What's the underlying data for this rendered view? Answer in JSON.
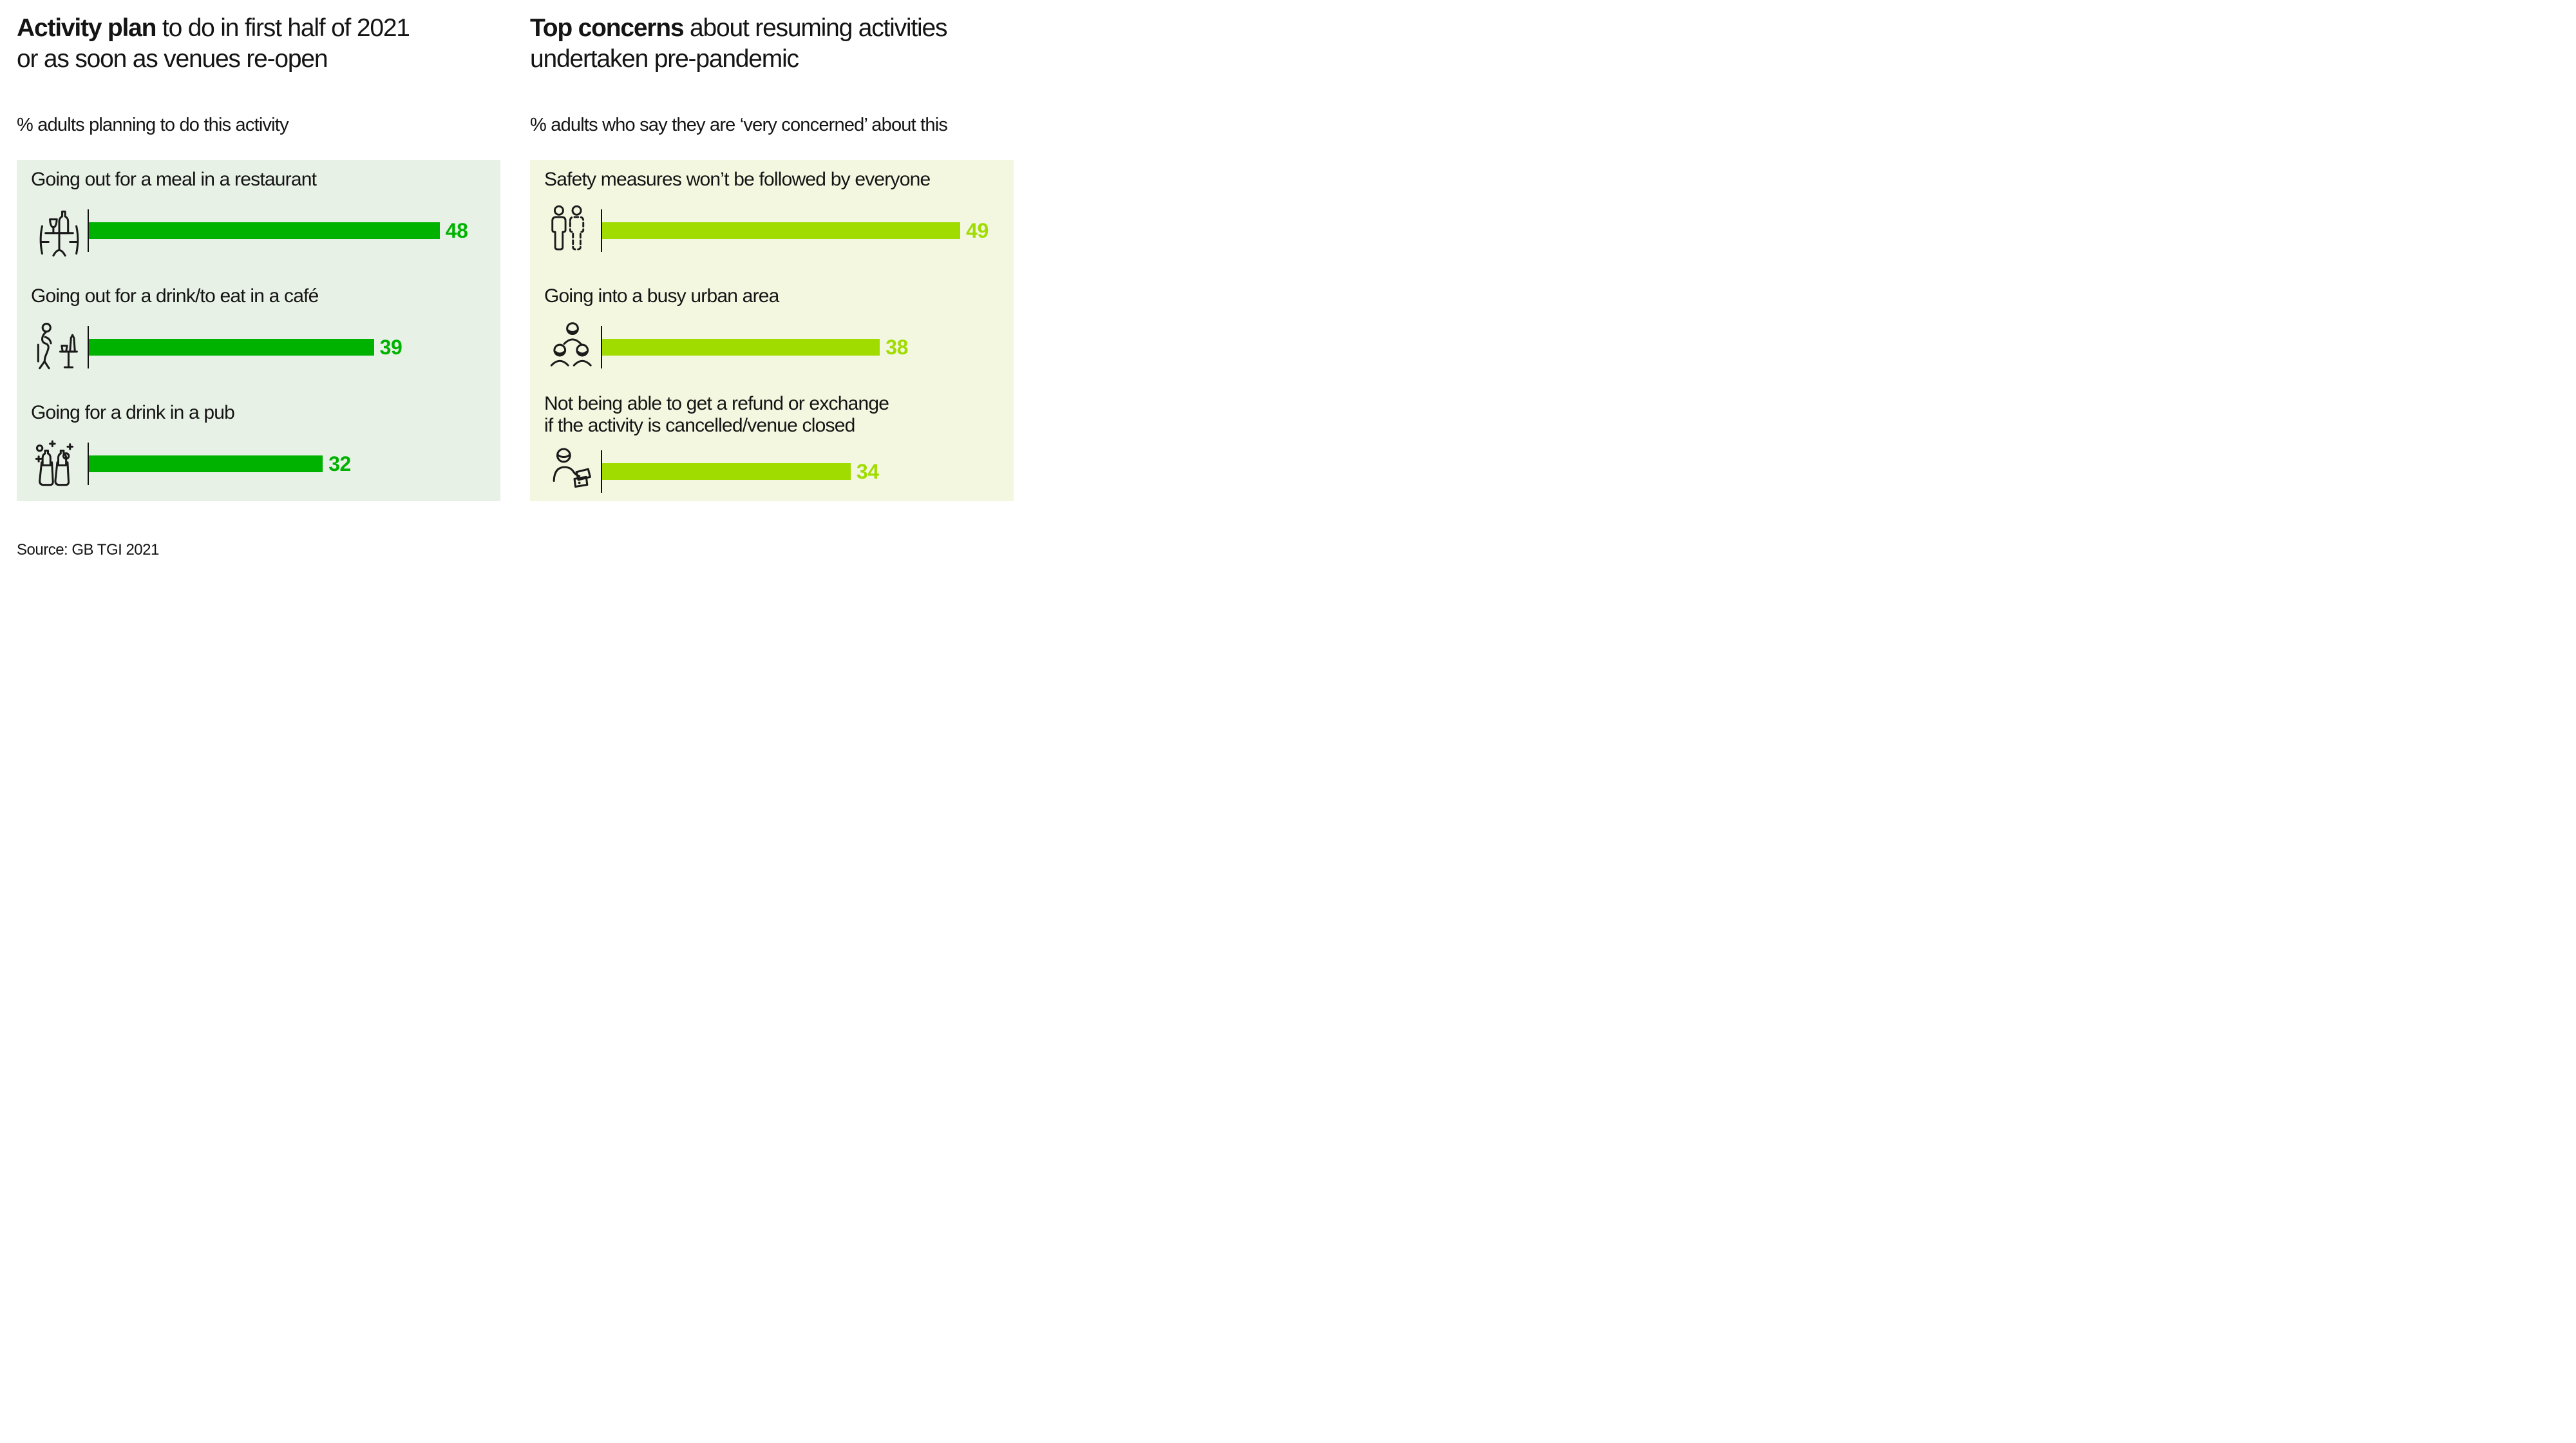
{
  "source_note": "Source: GB TGI 2021",
  "left_chart": {
    "title_bold": "Activity plan",
    "title_rest": " to do in first half of 2021",
    "title_line2": "or as soon as venues re-open",
    "subtitle": "% adults planning to do this activity",
    "panel_color": "#e8f1e6",
    "bar_color": "#00b200",
    "rows": [
      {
        "label": "Going out for a meal in a restaurant",
        "value": 48,
        "icon": "restaurant-table-icon"
      },
      {
        "label": "Going out for a drink/to eat in a café",
        "value": 39,
        "icon": "cafe-seated-person-icon"
      },
      {
        "label": "Going for a drink in a pub",
        "value": 32,
        "icon": "pub-drinks-icon"
      }
    ]
  },
  "right_chart": {
    "title_bold": "Top concerns",
    "title_rest": " about resuming activities",
    "title_line2": "undertaken pre-pandemic",
    "subtitle": "% adults who say they are ‘very concerned’ about this",
    "panel_color": "#f3f7e0",
    "bar_color": "#a0dc00",
    "rows": [
      {
        "label": "Safety measures won’t be followed by everyone",
        "label2": "",
        "value": 49,
        "icon": "social-distance-people-icon"
      },
      {
        "label": "Going into a busy urban area",
        "label2": "",
        "value": 38,
        "icon": "crowd-icon"
      },
      {
        "label": "Not being able to get a refund or exchange",
        "label2": "if the activity is cancelled/venue closed",
        "value": 34,
        "icon": "refund-tickets-icon"
      }
    ]
  },
  "chart_data": [
    {
      "type": "bar",
      "orientation": "horizontal",
      "title": "Activity plan to do in first half of 2021 or as soon as venues re-open",
      "subtitle": "% adults planning to do this activity",
      "categories": [
        "Going out for a meal in a restaurant",
        "Going out for a drink/to eat in a café",
        "Going for a drink in a pub"
      ],
      "values": [
        48,
        39,
        32
      ],
      "xlim": [
        0,
        53
      ],
      "bar_color": "#00b200",
      "panel_background": "#e8f1e6",
      "value_labels": true,
      "grid": false,
      "legend": false
    },
    {
      "type": "bar",
      "orientation": "horizontal",
      "title": "Top concerns about resuming activities undertaken pre-pandemic",
      "subtitle": "% adults who say they are ‘very concerned’ about this",
      "categories": [
        "Safety measures won’t be followed by everyone",
        "Going into a busy urban area",
        "Not being able to get a refund or exchange if the activity is cancelled/venue closed"
      ],
      "values": [
        49,
        38,
        34
      ],
      "xlim": [
        0,
        53
      ],
      "bar_color": "#a0dc00",
      "panel_background": "#f3f7e0",
      "value_labels": true,
      "grid": false,
      "legend": false
    }
  ]
}
